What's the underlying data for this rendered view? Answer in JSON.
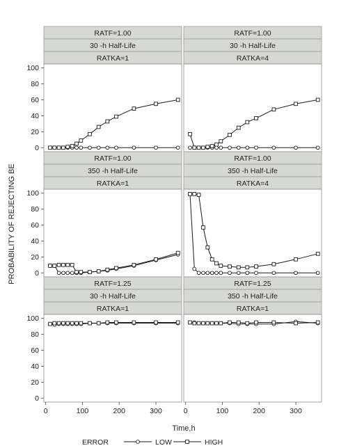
{
  "chart_data": {
    "type": "line",
    "xlabel": "Time,h",
    "ylabel": "PROBABILITY OF REJECTING BE",
    "xlim": [
      -5,
      370
    ],
    "ylim": [
      -5,
      105
    ],
    "xticks": [
      0,
      100,
      200,
      300
    ],
    "yticks": [
      0,
      20,
      40,
      60,
      80,
      100
    ],
    "legend": {
      "title": "ERROR",
      "entries": [
        "LOW",
        "HIGH"
      ],
      "position": "bottom"
    },
    "x": [
      12,
      24,
      36,
      48,
      60,
      72,
      84,
      96,
      120,
      144,
      168,
      192,
      240,
      300,
      360
    ],
    "panels": [
      {
        "strips": [
          "RATF=1.00",
          "30 -h Half-Life",
          "RATKA=1"
        ],
        "series": [
          {
            "name": "LOW",
            "values": [
              0,
              0,
              0,
              0,
              0,
              0,
              0,
              0,
              0,
              0,
              0,
              0,
              0,
              0,
              0
            ]
          },
          {
            "name": "HIGH",
            "values": [
              0,
              0,
              0,
              0,
              1,
              2,
              5,
              9,
              17,
              26,
              33,
              39,
              49,
              55,
              60
            ]
          }
        ]
      },
      {
        "strips": [
          "RATF=1.00",
          "30 -h Half-Life",
          "RATKA=4"
        ],
        "series": [
          {
            "name": "LOW",
            "values": [
              0,
              0,
              0,
              0,
              0,
              0,
              0,
              0,
              0,
              0,
              0,
              0,
              0,
              0,
              0
            ]
          },
          {
            "name": "HIGH",
            "values": [
              17,
              0,
              0,
              0,
              1,
              2,
              4,
              8,
              16,
              25,
              32,
              37,
              48,
              55,
              60
            ]
          }
        ]
      },
      {
        "strips": [
          "RATF=1.00",
          "350 -h Half-Life",
          "RATKA=1"
        ],
        "series": [
          {
            "name": "LOW",
            "values": [
              9,
              9,
              0,
              0,
              0,
              0,
              0,
              0,
              1,
              2,
              3,
              5,
              9,
              16,
              23
            ]
          },
          {
            "name": "HIGH",
            "values": [
              9,
              9,
              10,
              10,
              10,
              10,
              1,
              1,
              1,
              2,
              4,
              6,
              10,
              17,
              25
            ]
          }
        ]
      },
      {
        "strips": [
          "RATF=1.00",
          "350 -h Half-Life",
          "RATKA=4"
        ],
        "series": [
          {
            "name": "LOW",
            "values": [
              99,
              5,
              0,
              0,
              0,
              0,
              0,
              0,
              0,
              0,
              0,
              0,
              0,
              0,
              0
            ]
          },
          {
            "name": "HIGH",
            "values": [
              99,
              99,
              98,
              57,
              32,
              17,
              12,
              9,
              8,
              7,
              7,
              8,
              11,
              17,
              24
            ]
          }
        ]
      },
      {
        "strips": [
          "RATF=1.25",
          "30 -h Half-Life",
          "RATKA=1"
        ],
        "series": [
          {
            "name": "LOW",
            "values": [
              93,
              92,
              93,
              93,
              93,
              93,
              93,
              93,
              94,
              94,
              94,
              94,
              94,
              94,
              94
            ]
          },
          {
            "name": "HIGH",
            "values": [
              93,
              94,
              94,
              94,
              94,
              94,
              94,
              94,
              94,
              94,
              95,
              95,
              95,
              95,
              95
            ]
          }
        ]
      },
      {
        "strips": [
          "RATF=1.25",
          "350 -h Half-Life",
          "RATKA=1"
        ],
        "series": [
          {
            "name": "LOW",
            "values": [
              95,
              95,
              94,
              94,
              94,
              94,
              94,
              94,
              94,
              93,
              93,
              93,
              93,
              96,
              94
            ]
          },
          {
            "name": "HIGH",
            "values": [
              95,
              94,
              94,
              94,
              94,
              94,
              94,
              94,
              95,
              95,
              94,
              95,
              95,
              94,
              95
            ]
          }
        ]
      }
    ]
  }
}
